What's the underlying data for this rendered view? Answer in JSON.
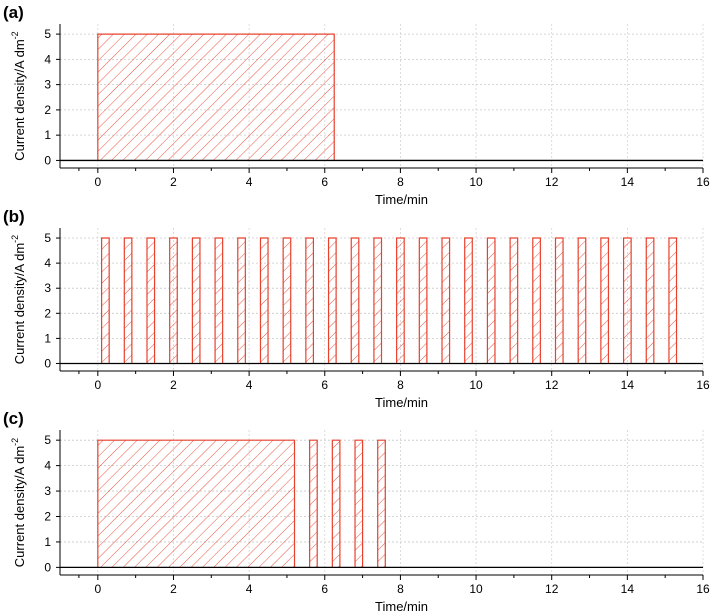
{
  "chart_data": [
    {
      "type": "area",
      "panel_label": "(a)",
      "xlabel": "Time/min",
      "ylabel": "Current density/A dm",
      "ylabel_sup": "-2",
      "xlim": [
        -1,
        16
      ],
      "ylim": [
        -0.3,
        5.4
      ],
      "xticks": [
        "0",
        "2",
        "4",
        "6",
        "8",
        "10",
        "12",
        "14",
        "16"
      ],
      "yticks": [
        "0",
        "1",
        "2",
        "3",
        "4",
        "5"
      ],
      "grid": true,
      "series": [
        {
          "pulses": [
            [
              0,
              6.25
            ]
          ],
          "current": 5,
          "color": "#e8412c"
        }
      ]
    },
    {
      "type": "area",
      "panel_label": "(b)",
      "xlabel": "Time/min",
      "ylabel": "Current density/A dm",
      "ylabel_sup": "-2",
      "xlim": [
        -1,
        16
      ],
      "ylim": [
        -0.3,
        5.4
      ],
      "xticks": [
        "0",
        "2",
        "4",
        "6",
        "8",
        "10",
        "12",
        "14",
        "16"
      ],
      "yticks": [
        "0",
        "1",
        "2",
        "3",
        "4",
        "5"
      ],
      "grid": true,
      "series": [
        {
          "pulses": [
            [
              0.1,
              0.3
            ],
            [
              0.7,
              0.9
            ],
            [
              1.3,
              1.5
            ],
            [
              1.9,
              2.1
            ],
            [
              2.5,
              2.7
            ],
            [
              3.1,
              3.3
            ],
            [
              3.7,
              3.9
            ],
            [
              4.3,
              4.5
            ],
            [
              4.9,
              5.1
            ],
            [
              5.5,
              5.7
            ],
            [
              6.1,
              6.3
            ],
            [
              6.7,
              6.9
            ],
            [
              7.3,
              7.5
            ],
            [
              7.9,
              8.1
            ],
            [
              8.5,
              8.7
            ],
            [
              9.1,
              9.3
            ],
            [
              9.7,
              9.9
            ],
            [
              10.3,
              10.5
            ],
            [
              10.9,
              11.1
            ],
            [
              11.5,
              11.7
            ],
            [
              12.1,
              12.3
            ],
            [
              12.7,
              12.9
            ],
            [
              13.3,
              13.5
            ],
            [
              13.9,
              14.1
            ],
            [
              14.5,
              14.7
            ],
            [
              15.1,
              15.3
            ]
          ],
          "current": 5,
          "color": "#e8412c"
        }
      ]
    },
    {
      "type": "area",
      "panel_label": "(c)",
      "xlabel": "Time/min",
      "ylabel": "Current density/A dm",
      "ylabel_sup": "-2",
      "xlim": [
        -1,
        16
      ],
      "ylim": [
        -0.3,
        5.4
      ],
      "xticks": [
        "0",
        "2",
        "4",
        "6",
        "8",
        "10",
        "12",
        "14",
        "16"
      ],
      "yticks": [
        "0",
        "1",
        "2",
        "3",
        "4",
        "5"
      ],
      "grid": true,
      "series": [
        {
          "pulses": [
            [
              0,
              5.2
            ],
            [
              5.6,
              5.8
            ],
            [
              6.2,
              6.4
            ],
            [
              6.8,
              7.0
            ],
            [
              7.4,
              7.6
            ]
          ],
          "current": 5,
          "color": "#e8412c"
        }
      ]
    }
  ]
}
